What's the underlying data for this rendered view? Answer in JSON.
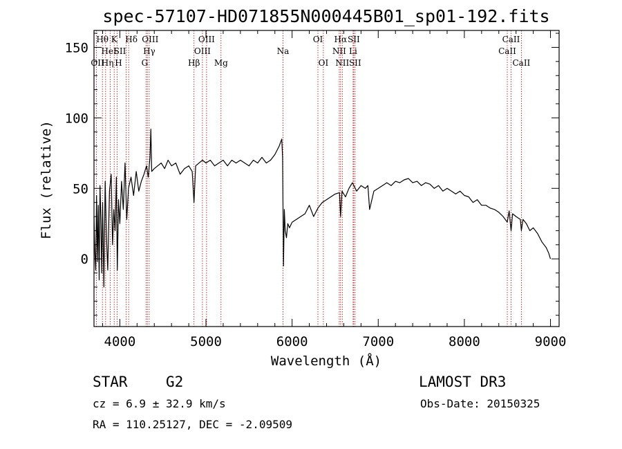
{
  "chart_data": {
    "type": "line",
    "title": "spec-57107-HD071855N000445B01_sp01-192.fits",
    "xlabel": "Wavelength (Å)",
    "ylabel": "Flux (relative)",
    "xlim": [
      3700,
      9100
    ],
    "ylim": [
      -48,
      162
    ],
    "xticks": [
      4000,
      5000,
      6000,
      7000,
      8000,
      9000
    ],
    "yticks": [
      0,
      50,
      100,
      150
    ],
    "series": [
      {
        "name": "flux",
        "x": [
          3700,
          3710,
          3720,
          3730,
          3740,
          3750,
          3760,
          3770,
          3780,
          3790,
          3800,
          3815,
          3830,
          3845,
          3860,
          3880,
          3900,
          3915,
          3930,
          3945,
          3960,
          3970,
          3985,
          4000,
          4020,
          4040,
          4060,
          4080,
          4100,
          4130,
          4160,
          4190,
          4220,
          4250,
          4280,
          4310,
          4330,
          4350,
          4360,
          4370,
          4400,
          4440,
          4480,
          4520,
          4560,
          4600,
          4650,
          4700,
          4750,
          4800,
          4840,
          4861,
          4880,
          4920,
          4960,
          5000,
          5050,
          5100,
          5150,
          5200,
          5250,
          5300,
          5350,
          5400,
          5450,
          5500,
          5550,
          5600,
          5650,
          5700,
          5750,
          5800,
          5850,
          5880,
          5890,
          5896,
          5900,
          5910,
          5920,
          5935,
          5950,
          5970,
          6000,
          6050,
          6100,
          6150,
          6200,
          6250,
          6300,
          6350,
          6400,
          6450,
          6500,
          6550,
          6563,
          6580,
          6620,
          6660,
          6700,
          6750,
          6800,
          6850,
          6880,
          6900,
          6950,
          7000,
          7050,
          7100,
          7150,
          7200,
          7250,
          7300,
          7350,
          7400,
          7450,
          7500,
          7550,
          7600,
          7650,
          7700,
          7750,
          7800,
          7850,
          7900,
          7950,
          8000,
          8050,
          8100,
          8150,
          8200,
          8250,
          8300,
          8350,
          8400,
          8450,
          8498,
          8520,
          8542,
          8560,
          8600,
          8650,
          8662,
          8680,
          8720,
          8760,
          8800,
          8850,
          8900,
          8950,
          8980,
          9000
        ],
        "values": [
          30,
          5,
          -8,
          45,
          -2,
          38,
          -15,
          52,
          28,
          -10,
          40,
          -20,
          55,
          15,
          -8,
          48,
          60,
          10,
          35,
          20,
          58,
          -8,
          42,
          25,
          55,
          35,
          68,
          28,
          50,
          58,
          45,
          62,
          48,
          55,
          60,
          66,
          58,
          72,
          92,
          62,
          64,
          66,
          68,
          64,
          70,
          66,
          68,
          60,
          64,
          66,
          62,
          40,
          66,
          68,
          70,
          68,
          70,
          66,
          68,
          70,
          66,
          70,
          68,
          70,
          68,
          66,
          70,
          68,
          72,
          68,
          70,
          74,
          80,
          85,
          72,
          25,
          -5,
          35,
          20,
          15,
          25,
          22,
          26,
          28,
          30,
          32,
          38,
          30,
          36,
          40,
          42,
          44,
          46,
          47,
          30,
          48,
          44,
          50,
          54,
          48,
          52,
          50,
          52,
          35,
          48,
          50,
          52,
          54,
          52,
          55,
          54,
          56,
          57,
          54,
          55,
          52,
          54,
          53,
          50,
          52,
          48,
          50,
          48,
          46,
          48,
          45,
          44,
          40,
          42,
          38,
          38,
          36,
          35,
          33,
          30,
          26,
          34,
          20,
          32,
          30,
          28,
          20,
          28,
          25,
          20,
          22,
          18,
          12,
          8,
          4,
          0
        ]
      }
    ],
    "lines": [
      {
        "label": "OII",
        "wl": 3727,
        "row": 2,
        "ha": "start",
        "dx": -8
      },
      {
        "label": "Hθ",
        "wl": 3798,
        "row": 0,
        "ha": "middle",
        "dx": 0
      },
      {
        "label": "Hη",
        "wl": 3835,
        "row": 2,
        "ha": "start",
        "dx": -6
      },
      {
        "label": "HeI",
        "wl": 3889,
        "row": 1,
        "ha": "middle",
        "dx": -2
      },
      {
        "label": "K",
        "wl": 3934,
        "row": 0,
        "ha": "middle",
        "dx": 0
      },
      {
        "label": "H",
        "wl": 3969,
        "row": 2,
        "ha": "middle",
        "dx": 2
      },
      {
        "label": "SII",
        "wl": 4072,
        "row": 1,
        "ha": "end",
        "dx": 0
      },
      {
        "label": "Hδ",
        "wl": 4102,
        "row": 0,
        "ha": "middle",
        "dx": 4
      },
      {
        "label": "G",
        "wl": 4305,
        "row": 2,
        "ha": "middle",
        "dx": -2
      },
      {
        "label": "OIII",
        "wl": 4320,
        "row": 0,
        "ha": "middle",
        "dx": 4
      },
      {
        "label": "Hγ",
        "wl": 4341,
        "row": 1,
        "ha": "middle",
        "dx": 0
      },
      {
        "label": "Hβ",
        "wl": 4861,
        "row": 2,
        "ha": "middle",
        "dx": 0
      },
      {
        "label": "OIII",
        "wl": 4959,
        "row": 1,
        "ha": "middle",
        "dx": 0
      },
      {
        "label": "OIII",
        "wl": 5007,
        "row": 0,
        "ha": "middle",
        "dx": 0
      },
      {
        "label": "Mg",
        "wl": 5175,
        "row": 2,
        "ha": "middle",
        "dx": 0
      },
      {
        "label": "Na",
        "wl": 5894,
        "row": 1,
        "ha": "middle",
        "dx": 0
      },
      {
        "label": "OI",
        "wl": 6300,
        "row": 0,
        "ha": "middle",
        "dx": 0
      },
      {
        "label": "OI",
        "wl": 6363,
        "row": 2,
        "ha": "middle",
        "dx": 0
      },
      {
        "label": "NII",
        "wl": 6548,
        "row": 1,
        "ha": "middle",
        "dx": 0
      },
      {
        "label": "Hα",
        "wl": 6563,
        "row": 0,
        "ha": "middle",
        "dx": 0
      },
      {
        "label": "NII",
        "wl": 6583,
        "row": 2,
        "ha": "middle",
        "dx": 0
      },
      {
        "label": "Li",
        "wl": 6708,
        "row": 1,
        "ha": "middle",
        "dx": 0
      },
      {
        "label": "SII",
        "wl": 6716,
        "row": 0,
        "ha": "middle",
        "dx": 0
      },
      {
        "label": "SII",
        "wl": 6731,
        "row": 2,
        "ha": "middle",
        "dx": 0
      },
      {
        "label": "CaII",
        "wl": 8498,
        "row": 1,
        "ha": "middle",
        "dx": 0
      },
      {
        "label": "CaII",
        "wl": 8542,
        "row": 0,
        "ha": "middle",
        "dx": 0
      },
      {
        "label": "CaII",
        "wl": 8662,
        "row": 2,
        "ha": "middle",
        "dx": 0
      }
    ]
  },
  "info": {
    "object_class": "STAR",
    "subclass": "G2",
    "survey": "LAMOST DR3",
    "redshift_text": "cz = 6.9 ± 32.9 km/s",
    "obs_date": "Obs-Date: 20150325",
    "coords_text": "RA = 110.25127, DEC =  -2.09509"
  },
  "colors": {
    "axis": "#000000",
    "spectrum": "#000000",
    "emission_line": "#b30000"
  }
}
